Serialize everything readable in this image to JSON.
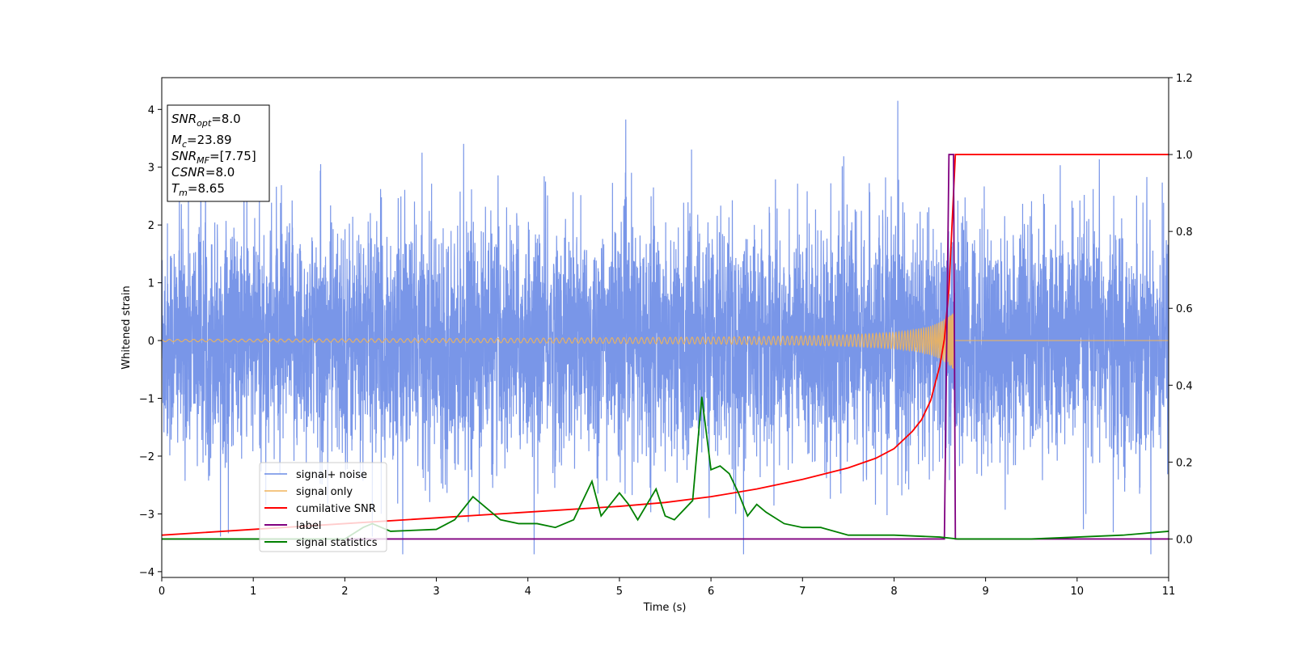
{
  "chart_data": {
    "type": "line",
    "xlabel": "Time (s)",
    "ylabel": "Whitened strain",
    "xlim": [
      0,
      11
    ],
    "ylim_left": [
      -4.1,
      4.55
    ],
    "ylim_right": [
      -0.1,
      1.2
    ],
    "xticks": [
      0,
      1,
      2,
      3,
      4,
      5,
      6,
      7,
      8,
      9,
      10,
      11
    ],
    "yticks_left": [
      -4,
      -3,
      -2,
      -1,
      0,
      1,
      2,
      3,
      4
    ],
    "yticks_right": [
      0.0,
      0.2,
      0.4,
      0.6,
      0.8,
      1.0,
      1.2
    ],
    "grid": false,
    "legend_position": "lower-left",
    "info_box": {
      "snr_opt": {
        "sym": "SNR",
        "sub": "opt",
        "val": "=8.0"
      },
      "mc": {
        "sym": "M",
        "sub": "c",
        "val": "=23.89"
      },
      "snr_mf": {
        "sym": "SNR",
        "sub": "MF",
        "val": "=[7.75]"
      },
      "csnr": {
        "sym": "CSNR",
        "sub": "",
        "val": "=8.0"
      },
      "tm": {
        "sym": "T",
        "sub": "m",
        "val": "=8.65"
      }
    },
    "series": [
      {
        "name": "signal+ noise",
        "color": "#6a8be6",
        "axis": "left",
        "x": [
          0,
          11
        ],
        "y": [
          0,
          0
        ]
      },
      {
        "name": "signal only",
        "color": "#f0b45a",
        "axis": "left",
        "x": [
          0,
          2,
          4,
          5,
          6,
          7,
          7.5,
          8,
          8.2,
          8.4,
          8.5,
          8.6,
          8.65,
          8.66,
          11
        ],
        "y": [
          0.02,
          0.03,
          0.04,
          0.05,
          0.06,
          0.08,
          0.1,
          0.14,
          0.18,
          0.25,
          0.32,
          0.42,
          0.5,
          0,
          0
        ]
      },
      {
        "name": "cumilative SNR",
        "color": "#ff0000",
        "axis": "right",
        "x": [
          0,
          1,
          2,
          3,
          4,
          5,
          5.5,
          6,
          6.5,
          7,
          7.5,
          7.8,
          8.0,
          8.2,
          8.3,
          8.4,
          8.5,
          8.55,
          8.6,
          8.62,
          8.65,
          8.67,
          11
        ],
        "y": [
          0.01,
          0.025,
          0.04,
          0.055,
          0.07,
          0.085,
          0.095,
          0.11,
          0.13,
          0.155,
          0.185,
          0.21,
          0.235,
          0.28,
          0.31,
          0.36,
          0.45,
          0.52,
          0.65,
          0.75,
          0.9,
          1.0,
          1.0
        ]
      },
      {
        "name": "label",
        "color": "#800080",
        "axis": "right",
        "x": [
          0,
          8.55,
          8.6,
          8.65,
          8.67,
          11
        ],
        "y": [
          0,
          0,
          1.0,
          1.0,
          0,
          0
        ]
      },
      {
        "name": "signal statistics",
        "color": "#008000",
        "axis": "right",
        "x": [
          0,
          2,
          2.2,
          2.3,
          2.5,
          3.0,
          3.2,
          3.4,
          3.5,
          3.7,
          3.9,
          4.1,
          4.3,
          4.5,
          4.6,
          4.7,
          4.8,
          5.0,
          5.1,
          5.2,
          5.4,
          5.5,
          5.6,
          5.8,
          5.9,
          6.0,
          6.1,
          6.2,
          6.3,
          6.4,
          6.5,
          6.6,
          6.8,
          7.0,
          7.2,
          7.5,
          8.0,
          8.5,
          8.7,
          9.0,
          9.5,
          10.0,
          10.5,
          11
        ],
        "y": [
          0.0,
          0.0,
          0.03,
          0.04,
          0.02,
          0.025,
          0.05,
          0.11,
          0.09,
          0.05,
          0.04,
          0.04,
          0.03,
          0.05,
          0.1,
          0.15,
          0.06,
          0.12,
          0.09,
          0.05,
          0.13,
          0.06,
          0.05,
          0.1,
          0.37,
          0.18,
          0.19,
          0.17,
          0.12,
          0.06,
          0.09,
          0.07,
          0.04,
          0.03,
          0.03,
          0.01,
          0.01,
          0.005,
          0.0,
          0.0,
          0.0,
          0.005,
          0.01,
          0.02
        ]
      }
    ]
  }
}
